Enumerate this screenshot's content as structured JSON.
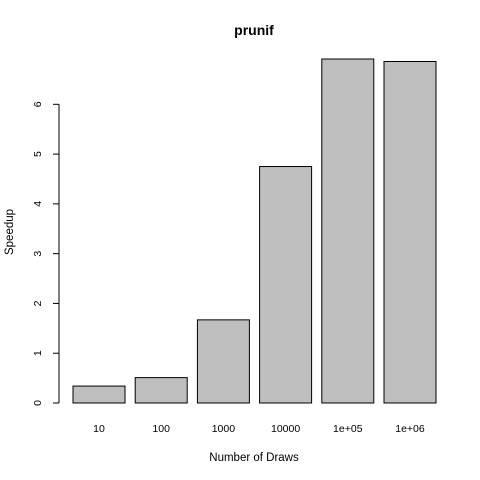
{
  "chart_data": {
    "type": "bar",
    "title": "prunif",
    "xlabel": "Number of Draws",
    "ylabel": "Speedup",
    "categories": [
      "10",
      "100",
      "1000",
      "10000",
      "1e+05",
      "1e+06"
    ],
    "values": [
      0.34,
      0.51,
      1.67,
      4.75,
      6.91,
      6.86
    ],
    "yticks": [
      0,
      1,
      2,
      3,
      4,
      5,
      6
    ],
    "ylim": [
      0,
      6.91
    ],
    "grid": false,
    "colors": {
      "bar_fill": "#bebebe",
      "bar_stroke": "#000000"
    }
  }
}
